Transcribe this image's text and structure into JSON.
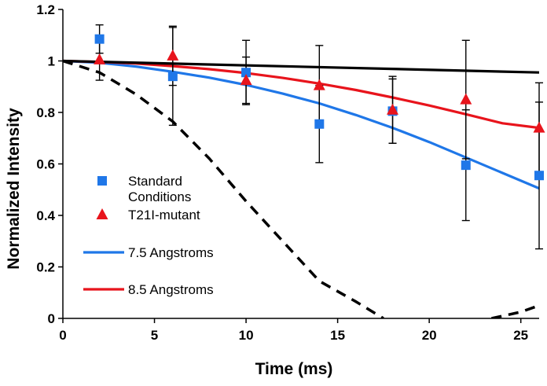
{
  "chart_data": {
    "type": "scatter",
    "title": "",
    "xlabel": "Time (ms)",
    "ylabel": "Normalized Intensity",
    "xlim": [
      0,
      26
    ],
    "ylim": [
      0,
      1.2
    ],
    "xticks": [
      0,
      5,
      10,
      15,
      20,
      25
    ],
    "yticks": [
      0,
      0.2,
      0.4,
      0.6,
      0.8,
      1,
      1.2
    ],
    "xtick_labels": [
      "0",
      "5",
      "10",
      "15",
      "20",
      "25"
    ],
    "ytick_labels": [
      "0",
      "0.2",
      "0.4",
      "0.6",
      "0.8",
      "1",
      "1.2"
    ],
    "grid": false,
    "legend_position": "left",
    "series": [
      {
        "name": "Standard Conditions",
        "kind": "markers",
        "marker": "square",
        "color": "#1f77e8",
        "x": [
          2,
          6,
          10,
          14,
          18,
          22,
          26
        ],
        "y": [
          1.085,
          0.94,
          0.955,
          0.755,
          0.805,
          0.595,
          0.555
        ],
        "err": [
          0.055,
          0.19,
          0.125,
          0.15,
          0.125,
          0.215,
          0.285
        ]
      },
      {
        "name": "T21I-mutant",
        "kind": "markers",
        "marker": "triangle",
        "color": "#e8141c",
        "x": [
          2,
          6,
          10,
          14,
          18,
          22,
          26
        ],
        "y": [
          1.005,
          1.02,
          0.925,
          0.905,
          0.81,
          0.85,
          0.74
        ],
        "err": [
          0.08,
          0.115,
          0.09,
          0.155,
          0.13,
          0.23,
          0.175
        ]
      },
      {
        "name": "7.5 Angstroms",
        "kind": "line",
        "color": "#1f77e8",
        "x": [
          0,
          2,
          4,
          6,
          8,
          10,
          12,
          14,
          16,
          18,
          20,
          22,
          24,
          26
        ],
        "y": [
          1.0,
          0.993,
          0.978,
          0.958,
          0.935,
          0.907,
          0.873,
          0.835,
          0.79,
          0.74,
          0.685,
          0.625,
          0.565,
          0.505
        ]
      },
      {
        "name": "8.5 Angstroms",
        "kind": "line",
        "color": "#e8141c",
        "x": [
          0,
          2,
          4,
          6,
          8,
          10,
          12,
          14,
          16,
          18,
          20,
          22,
          24,
          26
        ],
        "y": [
          1.0,
          0.996,
          0.99,
          0.98,
          0.968,
          0.953,
          0.934,
          0.912,
          0.887,
          0.858,
          0.827,
          0.793,
          0.758,
          0.74
        ]
      },
      {
        "name": "",
        "kind": "line",
        "color": "#000000",
        "x": [
          0,
          26
        ],
        "y": [
          1.0,
          0.955
        ]
      },
      {
        "name": "",
        "kind": "dashed",
        "color": "#000000",
        "x": [
          0,
          2,
          4,
          6,
          8,
          10,
          12,
          14,
          16,
          17.5
        ],
        "y": [
          1.0,
          0.955,
          0.87,
          0.765,
          0.62,
          0.455,
          0.3,
          0.145,
          0.065,
          0.0
        ]
      },
      {
        "name": "",
        "kind": "dashed",
        "color": "#000000",
        "x": [
          23.4,
          25,
          26
        ],
        "y": [
          0.0,
          0.025,
          0.05
        ]
      }
    ],
    "legend": [
      {
        "series": 0,
        "symbol": "square",
        "label_lines": [
          "Standard",
          "Conditions"
        ]
      },
      {
        "series": 1,
        "symbol": "triangle",
        "label_lines": [
          "T21I-mutant"
        ]
      },
      {
        "series": 2,
        "symbol": "line",
        "label_lines": [
          "7.5 Angstroms"
        ]
      },
      {
        "series": 3,
        "symbol": "line",
        "label_lines": [
          "8.5 Angstroms"
        ]
      }
    ]
  }
}
